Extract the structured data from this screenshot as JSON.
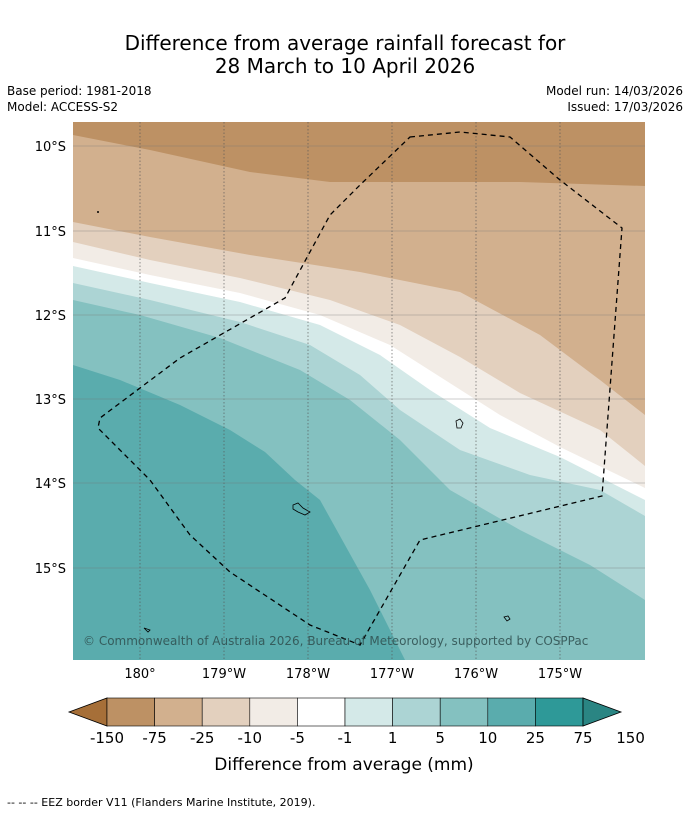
{
  "title_line1": "Difference from average rainfall forecast for",
  "title_line2": "28 March to 10 April 2026",
  "base_period": "Base period: 1981-2018",
  "model": "Model: ACCESS-S2",
  "model_run": "Model run: 14/03/2026",
  "issued": "Issued: 17/03/2026",
  "lat_labels": [
    "10°S",
    "11°S",
    "12°S",
    "13°S",
    "14°S",
    "15°S"
  ],
  "lon_labels": [
    "180°",
    "179°W",
    "178°W",
    "177°W",
    "176°W",
    "175°W"
  ],
  "copyright": "© Commonwealth of Australia 2026, Bureau of Meteorology, supported by COSPPac",
  "legend": {
    "title": "Difference from average (mm)",
    "ticks": [
      "-150",
      "-75",
      "-25",
      "-10",
      "-5",
      "-1",
      "1",
      "5",
      "10",
      "25",
      "75",
      "150"
    ],
    "colors": [
      "#a66f38",
      "#bd9164",
      "#d2b08e",
      "#e3d0be",
      "#f2ece6",
      "#ffffff",
      "#d4e9e8",
      "#acd4d4",
      "#84c1c0",
      "#5aacad",
      "#2e9998",
      "#2a8583"
    ]
  },
  "footer_note": "--  --  -- EEZ border V11 (Flanders Marine Institute, 2019)."
}
